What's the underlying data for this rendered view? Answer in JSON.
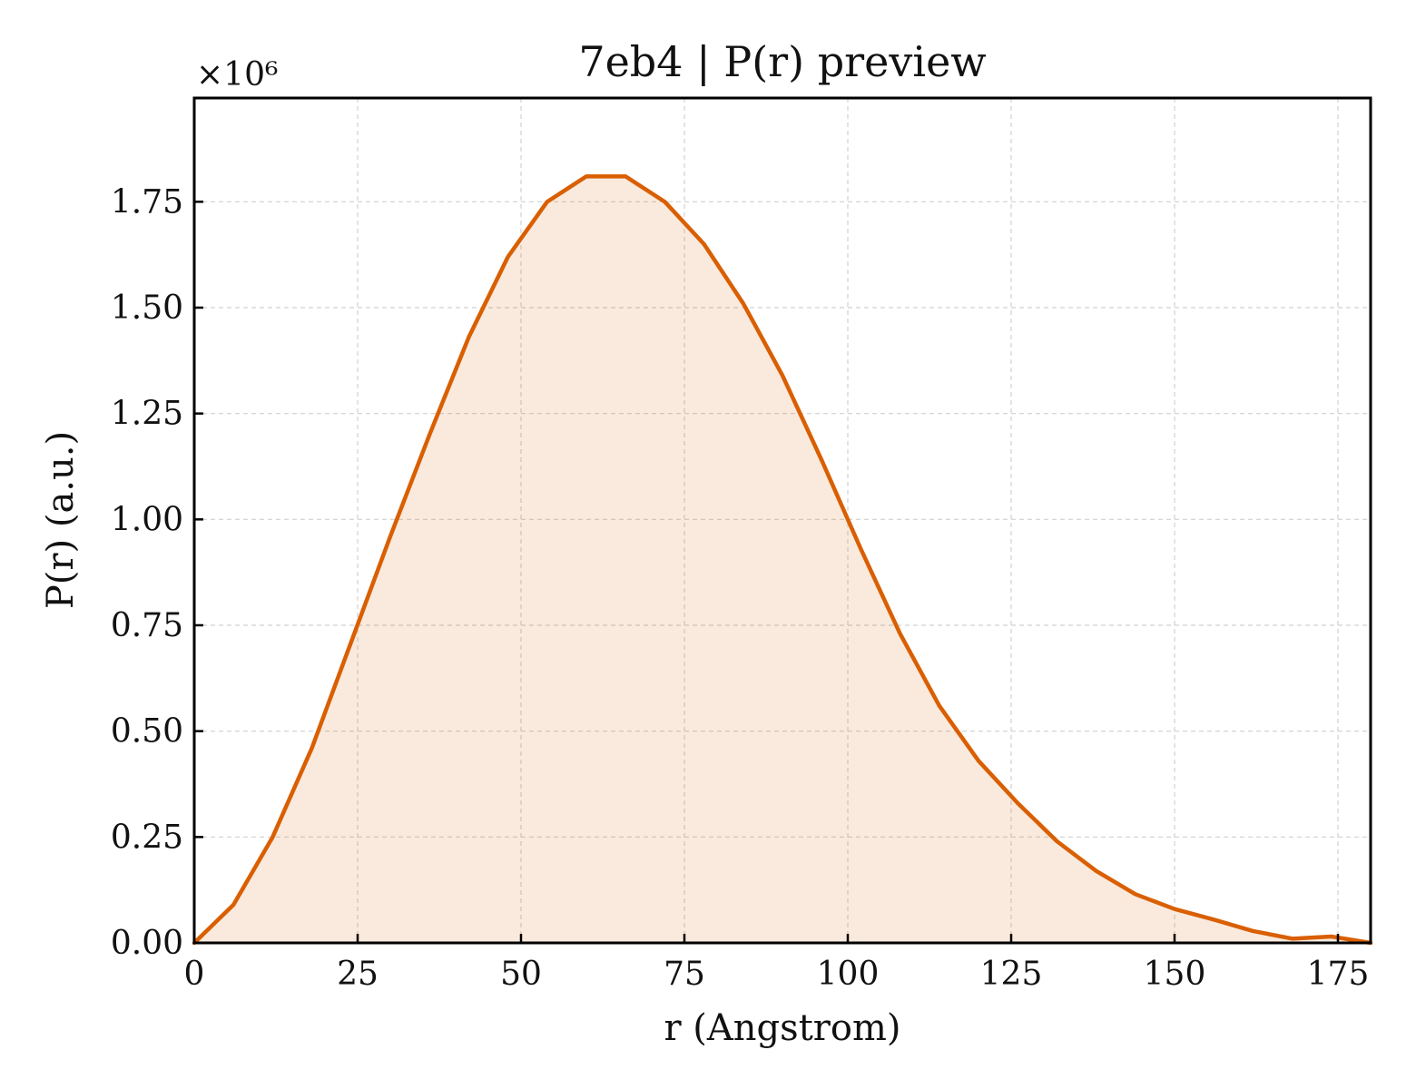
{
  "chart_data": {
    "type": "area",
    "title": "7eb4 | P(r) preview",
    "xlabel": "r (Angstrom)",
    "ylabel": "P(r) (a.u.)",
    "y_multiplier_label": "×10⁶",
    "xlim": [
      0,
      180
    ],
    "ylim": [
      0,
      1.995
    ],
    "x_ticks": [
      0,
      25,
      50,
      75,
      100,
      125,
      150,
      175
    ],
    "x_tick_labels": [
      "0",
      "25",
      "50",
      "75",
      "100",
      "125",
      "150",
      "175"
    ],
    "y_ticks": [
      0,
      0.25,
      0.5,
      0.75,
      1.0,
      1.25,
      1.5,
      1.75
    ],
    "y_tick_labels": [
      "0.00",
      "0.25",
      "0.50",
      "0.75",
      "1.00",
      "1.25",
      "1.50",
      "1.75"
    ],
    "grid": true,
    "series": [
      {
        "color": "#d95f02",
        "fill_color": "#d95f02",
        "fill_opacity": 0.13,
        "x": [
          0,
          6,
          12,
          18,
          24,
          30,
          36,
          42,
          48,
          54,
          60,
          66,
          72,
          78,
          84,
          90,
          96,
          102,
          108,
          114,
          120,
          126,
          132,
          138,
          144,
          150,
          156,
          162,
          168,
          174,
          180
        ],
        "values": [
          0.0,
          0.09,
          0.25,
          0.46,
          0.71,
          0.96,
          1.2,
          1.43,
          1.62,
          1.75,
          1.81,
          1.81,
          1.75,
          1.65,
          1.51,
          1.34,
          1.14,
          0.93,
          0.73,
          0.56,
          0.43,
          0.33,
          0.24,
          0.17,
          0.115,
          0.08,
          0.055,
          0.028,
          0.01,
          0.015,
          0.0
        ]
      }
    ]
  }
}
